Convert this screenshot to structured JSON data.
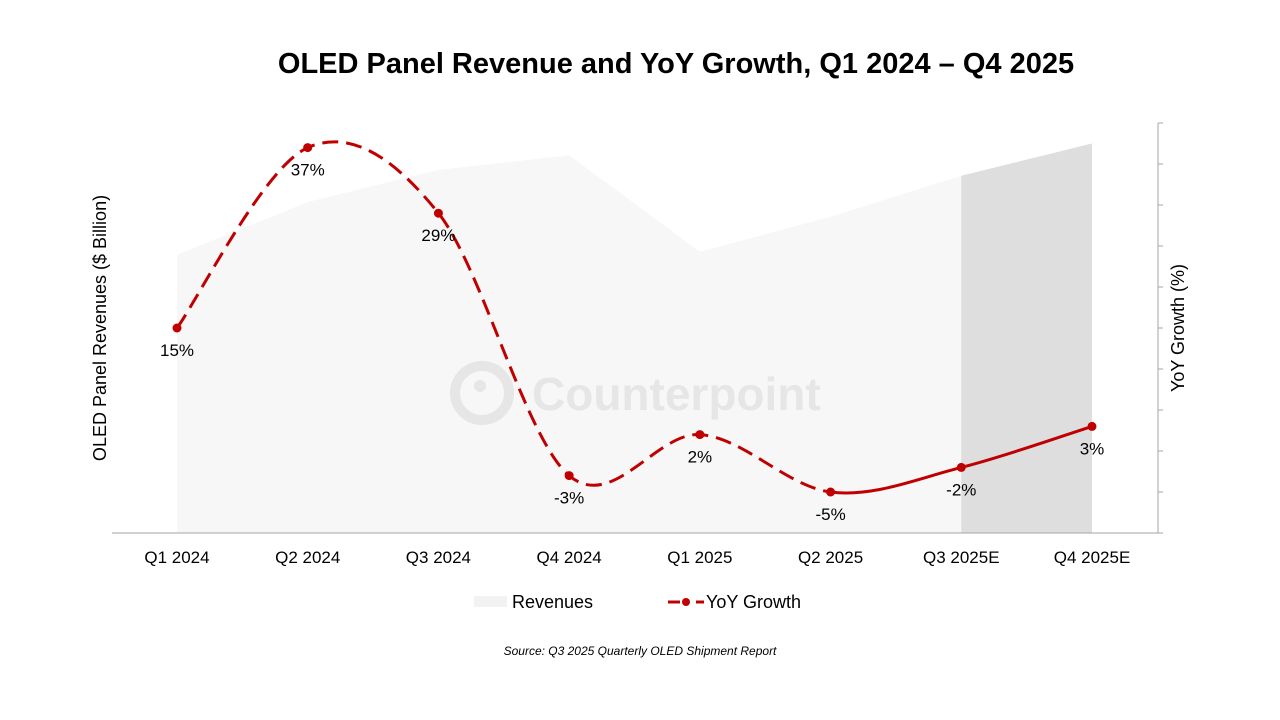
{
  "chart_data": {
    "type": "area+line",
    "title": "OLED Panel Revenue and YoY Growth, Q1 2024 – Q4 2025",
    "categories": [
      "Q1 2024",
      "Q2 2024",
      "Q3 2024",
      "Q4 2024",
      "Q1 2025",
      "Q2 2025",
      "Q3 2025E",
      "Q4 2025E"
    ],
    "ylabel_left": "OLED Panel Revenues ($ Billion)",
    "ylabel_right": "YoY Growth (%)",
    "ylim_left": [
      0,
      14
    ],
    "ylim_right": [
      -10,
      40
    ],
    "right_tick_step": 5,
    "tick_labels_shown": false,
    "grid": false,
    "legend_position": "bottom",
    "forecast_categories": [
      "Q3 2025E",
      "Q4 2025E"
    ],
    "series": [
      {
        "name": "Revenues",
        "type": "area",
        "color": "#f7f7f7",
        "forecast_color": "#dedede",
        "values": [
          9.5,
          11.3,
          12.4,
          12.9,
          9.6,
          10.8,
          12.2,
          13.3
        ]
      },
      {
        "name": "YoY Growth",
        "type": "line",
        "color": "#c00000",
        "values": [
          15,
          37,
          29,
          -3,
          2,
          -5,
          -2,
          3
        ],
        "data_labels": [
          "15%",
          "37%",
          "29%",
          "-3%",
          "2%",
          "-5%",
          "-2%",
          "3%"
        ]
      }
    ],
    "source": "Source: Q3 2025 Quarterly OLED Shipment Report",
    "watermark": "Counterpoint"
  }
}
